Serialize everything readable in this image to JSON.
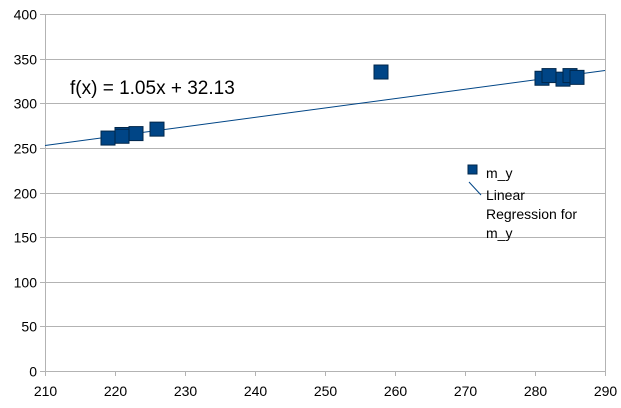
{
  "chart_data": {
    "type": "scatter",
    "xlim": [
      210,
      290
    ],
    "ylim": [
      0,
      400
    ],
    "x_ticks": [
      210,
      220,
      230,
      240,
      250,
      260,
      270,
      280,
      290
    ],
    "y_ticks": [
      0,
      50,
      100,
      150,
      200,
      250,
      300,
      350,
      400
    ],
    "x_tick_labels": [
      "210",
      "220",
      "230",
      "240",
      "250",
      "260",
      "270",
      "280",
      "290"
    ],
    "y_tick_labels": [
      "0",
      "50",
      "100",
      "150",
      "200",
      "250",
      "300",
      "350",
      "400"
    ],
    "grid": "horizontal",
    "series": [
      {
        "name": "m_y",
        "color": "#004586",
        "marker": "square",
        "points": [
          {
            "x": 219,
            "y": 261
          },
          {
            "x": 221,
            "y": 265
          },
          {
            "x": 221,
            "y": 263
          },
          {
            "x": 223,
            "y": 266
          },
          {
            "x": 226,
            "y": 271
          },
          {
            "x": 258,
            "y": 335
          },
          {
            "x": 281,
            "y": 328
          },
          {
            "x": 282,
            "y": 331
          },
          {
            "x": 284,
            "y": 327
          },
          {
            "x": 285,
            "y": 331
          },
          {
            "x": 286,
            "y": 329
          }
        ]
      }
    ],
    "trendline": {
      "name": "Linear Regression for m_y",
      "slope": 1.05,
      "intercept": 32.13,
      "color": "#004586",
      "equation_label": "f(x) = 1.05x + 32.13"
    },
    "legend": {
      "placement": "right",
      "entries": [
        "m_y",
        "Linear",
        "Regression for",
        "m_y"
      ]
    }
  }
}
